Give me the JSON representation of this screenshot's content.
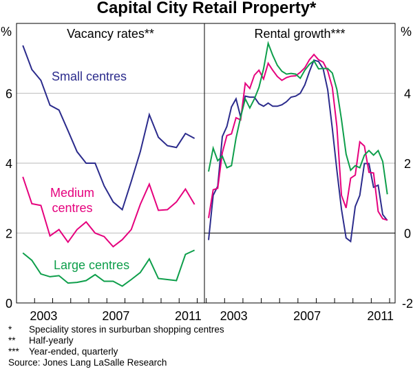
{
  "title": "Capital City Retail Property*",
  "colors": {
    "small": "#2b2b8c",
    "medium": "#e5007d",
    "large": "#0d9e4a"
  },
  "footnotes": [
    {
      "mark": "*",
      "text": "Speciality stores in surburban shopping centres"
    },
    {
      "mark": "**",
      "text": "Half-yearly"
    },
    {
      "mark": "***",
      "text": "Year-ended, quarterly"
    }
  ],
  "source": "Source: Jones Lang LaSalle Research",
  "chart_data": [
    {
      "type": "line",
      "title": "Vacancy rates**",
      "ylabel": "%",
      "ylim": [
        0,
        8
      ],
      "yticks": [
        "0",
        "2",
        "4",
        "6"
      ],
      "xlim": [
        2002,
        2012.4
      ],
      "xticks": [
        "2003",
        "2007",
        "2011"
      ],
      "x": [
        2002.35,
        2002.85,
        2003.35,
        2003.85,
        2004.35,
        2004.85,
        2005.35,
        2005.85,
        2006.35,
        2006.85,
        2007.35,
        2007.85,
        2008.35,
        2008.85,
        2009.35,
        2009.85,
        2010.35,
        2010.85,
        2011.35,
        2011.85
      ],
      "series": [
        {
          "name": "Small centres",
          "color_key": "small",
          "label": "Small centres",
          "values": [
            7.37,
            6.68,
            6.37,
            5.66,
            5.52,
            4.93,
            4.33,
            4.0,
            4.0,
            3.35,
            2.89,
            2.67,
            3.48,
            4.33,
            5.39,
            4.74,
            4.5,
            4.45,
            4.85,
            4.71
          ]
        },
        {
          "name": "Medium centres",
          "color_key": "medium",
          "label": [
            "Medium",
            "centres"
          ],
          "values": [
            3.61,
            2.84,
            2.79,
            1.92,
            2.1,
            1.74,
            2.1,
            2.32,
            2.0,
            1.9,
            1.61,
            1.81,
            2.1,
            2.82,
            3.4,
            2.65,
            2.67,
            2.89,
            3.26,
            2.82
          ]
        },
        {
          "name": "Large centres",
          "color_key": "large",
          "label": "Large centres",
          "values": [
            1.43,
            1.22,
            0.83,
            0.75,
            0.78,
            0.57,
            0.59,
            0.64,
            0.81,
            0.62,
            0.62,
            0.48,
            0.67,
            0.87,
            1.26,
            0.7,
            0.67,
            0.64,
            1.39,
            1.51
          ]
        }
      ]
    },
    {
      "type": "line",
      "title": "Rental growth***",
      "ylabel": "%",
      "ylim": [
        -2,
        6
      ],
      "yticks": [
        "-2",
        "0",
        "2",
        "4"
      ],
      "xlim": [
        2001.9,
        2012.3
      ],
      "xticks": [
        "2003",
        "2007",
        "2011"
      ],
      "x_start": 2002.125,
      "x_step": 0.25,
      "series": [
        {
          "name": "Small centres",
          "color_key": "small",
          "values": [
            -0.2,
            1.08,
            1.34,
            2.76,
            3.05,
            3.61,
            3.84,
            3.32,
            3.92,
            3.89,
            3.89,
            3.7,
            3.63,
            3.72,
            3.63,
            3.63,
            3.67,
            3.76,
            3.89,
            3.92,
            4.0,
            4.24,
            4.62,
            4.95,
            4.91,
            4.7,
            4.1,
            2.99,
            1.8,
            0.68,
            -0.14,
            -0.24,
            0.76,
            1.08,
            1.99,
            1.99,
            1.31,
            1.37,
            0.53,
            0.36
          ]
        },
        {
          "name": "Medium centres",
          "color_key": "medium",
          "values": [
            0.43,
            1.24,
            1.28,
            2.3,
            2.79,
            2.84,
            3.3,
            3.24,
            4.29,
            4.14,
            4.52,
            4.66,
            4.41,
            4.86,
            4.66,
            4.48,
            4.37,
            4.45,
            4.49,
            4.5,
            4.6,
            4.73,
            4.96,
            5.11,
            4.96,
            4.89,
            4.64,
            4.17,
            3.05,
            1.08,
            0.72,
            1.57,
            1.66,
            2.61,
            2.49,
            1.74,
            1.72,
            0.62,
            0.41,
            0.37
          ]
        },
        {
          "name": "Large centres",
          "color_key": "large",
          "values": [
            1.76,
            2.43,
            2.07,
            2.2,
            1.87,
            1.93,
            2.72,
            3.32,
            3.84,
            3.58,
            3.84,
            4.17,
            4.7,
            5.43,
            5.09,
            4.8,
            4.63,
            4.55,
            4.57,
            4.55,
            4.43,
            4.66,
            4.83,
            4.93,
            4.7,
            4.71,
            4.71,
            4.58,
            4.11,
            3.25,
            2.26,
            1.8,
            1.93,
            1.87,
            2.23,
            2.36,
            2.23,
            2.36,
            2.05,
            1.11
          ]
        }
      ]
    }
  ]
}
